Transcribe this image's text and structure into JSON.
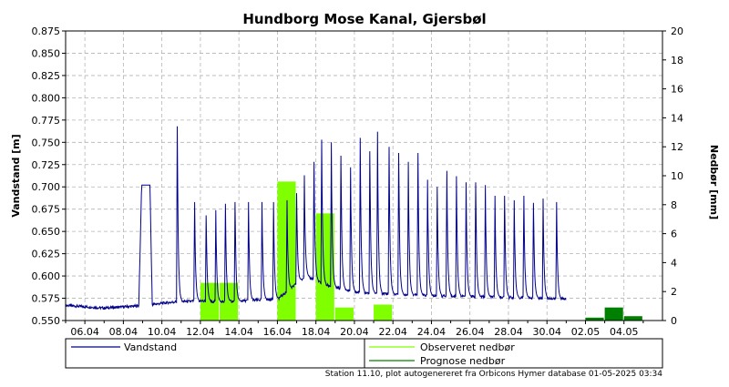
{
  "chart_data": {
    "type": "line",
    "title": "Hundborg Mose Kanal, Gjersbøl",
    "ylabel_left": "Vandstand [m]",
    "ylabel_right": "Nedbør [mm]",
    "ylim_left": [
      0.55,
      0.875
    ],
    "ylim_right": [
      0,
      20
    ],
    "yticks_left": [
      "0.550",
      "0.575",
      "0.600",
      "0.625",
      "0.650",
      "0.675",
      "0.700",
      "0.725",
      "0.750",
      "0.775",
      "0.800",
      "0.825",
      "0.850",
      "0.875"
    ],
    "yticks_right": [
      "0",
      "2",
      "4",
      "6",
      "8",
      "10",
      "12",
      "14",
      "16",
      "18",
      "20"
    ],
    "xlim_days": [
      5,
      36
    ],
    "xtick_labels": [
      "06.04",
      "08.04",
      "10.04",
      "12.04",
      "14.04",
      "16.04",
      "18.04",
      "20.04",
      "22.04",
      "24.04",
      "26.04",
      "28.04",
      "30.04",
      "02.05",
      "04.05"
    ],
    "xtick_days": [
      6,
      8,
      10,
      12,
      14,
      16,
      18,
      20,
      22,
      24,
      26,
      28,
      30,
      32,
      34
    ],
    "grid": true,
    "legend_position": "bottom",
    "series": [
      {
        "name": "Vandstand",
        "color": "#00008b",
        "baseline": [
          [
            5,
            0.567
          ],
          [
            7,
            0.564
          ],
          [
            8.5,
            0.566
          ],
          [
            9.5,
            0.568
          ],
          [
            10.7,
            0.571
          ],
          [
            12,
            0.572
          ],
          [
            13,
            0.571
          ],
          [
            14,
            0.572
          ],
          [
            16,
            0.574
          ],
          [
            17.5,
            0.6
          ],
          [
            18.5,
            0.59
          ],
          [
            20,
            0.582
          ],
          [
            22,
            0.58
          ],
          [
            24,
            0.578
          ],
          [
            26,
            0.577
          ],
          [
            28,
            0.576
          ],
          [
            30,
            0.575
          ],
          [
            31,
            0.574
          ]
        ],
        "spikes": [
          [
            10.8,
            0.768
          ],
          [
            11.7,
            0.683
          ],
          [
            12.3,
            0.668
          ],
          [
            12.8,
            0.674
          ],
          [
            13.3,
            0.681
          ],
          [
            13.8,
            0.683
          ],
          [
            14.5,
            0.683
          ],
          [
            15.2,
            0.683
          ],
          [
            15.8,
            0.683
          ],
          [
            16.5,
            0.685
          ],
          [
            17.0,
            0.693
          ],
          [
            17.4,
            0.713
          ],
          [
            17.9,
            0.728
          ],
          [
            18.3,
            0.753
          ],
          [
            18.8,
            0.75
          ],
          [
            19.3,
            0.735
          ],
          [
            19.8,
            0.722
          ],
          [
            20.3,
            0.755
          ],
          [
            20.8,
            0.74
          ],
          [
            21.2,
            0.762
          ],
          [
            21.8,
            0.745
          ],
          [
            22.3,
            0.738
          ],
          [
            22.8,
            0.728
          ],
          [
            23.3,
            0.738
          ],
          [
            23.8,
            0.708
          ],
          [
            24.3,
            0.7
          ],
          [
            24.8,
            0.718
          ],
          [
            25.3,
            0.712
          ],
          [
            25.8,
            0.705
          ],
          [
            26.3,
            0.705
          ],
          [
            26.8,
            0.702
          ],
          [
            27.3,
            0.69
          ],
          [
            27.8,
            0.69
          ],
          [
            28.3,
            0.685
          ],
          [
            28.8,
            0.69
          ],
          [
            29.3,
            0.682
          ],
          [
            29.8,
            0.687
          ],
          [
            30.5,
            0.683
          ]
        ],
        "hump": {
          "start": 8.8,
          "end": 9.5,
          "level": 0.702
        }
      },
      {
        "name": "Observeret nedbør",
        "color": "#80ff00",
        "bars": [
          [
            12,
            13,
            2.6
          ],
          [
            13,
            14,
            2.6
          ],
          [
            16,
            17,
            9.6
          ],
          [
            18,
            19,
            7.4
          ],
          [
            19,
            20,
            0.9
          ],
          [
            21,
            22,
            1.1
          ]
        ]
      },
      {
        "name": "Prognose nedbør",
        "color": "#008000",
        "bars": [
          [
            32,
            33,
            0.2
          ],
          [
            33,
            34,
            0.9
          ],
          [
            34,
            35,
            0.3
          ]
        ]
      }
    ]
  },
  "legend": {
    "items": [
      "Vandstand",
      "Observeret nedbør",
      "Prognose nedbør"
    ]
  },
  "footer": "Station 11.10, plot autogenereret fra Orbicons Hymer database 01-05-2025 03:34"
}
